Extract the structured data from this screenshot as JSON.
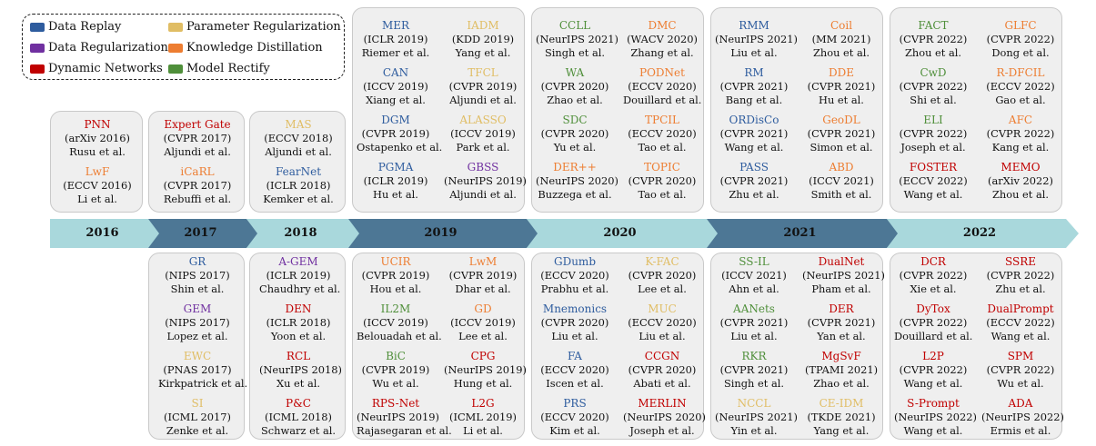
{
  "colors": {
    "DR": "#2E5C9E",
    "REG": "#7030A0",
    "DN": "#C00000",
    "PR": "#E0BD64",
    "KD": "#ED7D31",
    "MR": "#4F8F3A",
    "arrow_light": "#A9D8DC",
    "arrow_dark": "#4D7795"
  },
  "legend": [
    {
      "label": "Data Replay",
      "cat": "DR"
    },
    {
      "label": "Parameter Regularization",
      "cat": "PR"
    },
    {
      "label": "Data Regularization",
      "cat": "REG"
    },
    {
      "label": "Knowledge Distillation",
      "cat": "KD"
    },
    {
      "label": "Dynamic Networks",
      "cat": "DN"
    },
    {
      "label": "Model Rectify",
      "cat": "MR"
    }
  ],
  "years": [
    "2016",
    "2017",
    "2018",
    "2019",
    "2020",
    "2021",
    "2022"
  ],
  "top": {
    "2016": [
      {
        "name": "PNN",
        "venue": "(arXiv 2016)",
        "authors": "Rusu et al.",
        "cat": "DN"
      },
      {
        "name": "LwF",
        "venue": "(ECCV 2016)",
        "authors": "Li et al.",
        "cat": "KD"
      }
    ],
    "2017": [
      {
        "name": "Expert Gate",
        "venue": "(CVPR 2017)",
        "authors": "Aljundi et al.",
        "cat": "DN"
      },
      {
        "name": "iCaRL",
        "venue": "(CVPR 2017)",
        "authors": "Rebuffi et al.",
        "cat": "KD"
      }
    ],
    "2018": [
      {
        "name": "MAS",
        "venue": "(ECCV 2018)",
        "authors": "Aljundi et al.",
        "cat": "PR"
      },
      {
        "name": "FearNet",
        "venue": "(ICLR 2018)",
        "authors": "Kemker et al.",
        "cat": "DR"
      }
    ],
    "2019": [
      {
        "name": "MER",
        "venue": "(ICLR 2019)",
        "authors": "Riemer et al.",
        "cat": "DR"
      },
      {
        "name": "IADM",
        "venue": "(KDD 2019)",
        "authors": "Yang et al.",
        "cat": "PR"
      },
      {
        "name": "CAN",
        "venue": "(ICCV 2019)",
        "authors": "Xiang et al.",
        "cat": "DR"
      },
      {
        "name": "TFCL",
        "venue": "(CVPR 2019)",
        "authors": "Aljundi et al.",
        "cat": "PR"
      },
      {
        "name": "DGM",
        "venue": "(CVPR 2019)",
        "authors": "Ostapenko et al.",
        "cat": "DR"
      },
      {
        "name": "ALASSO",
        "venue": "(ICCV 2019)",
        "authors": "Park et al.",
        "cat": "PR"
      },
      {
        "name": "PGMA",
        "venue": "(ICLR 2019)",
        "authors": "Hu et al.",
        "cat": "DR"
      },
      {
        "name": "GBSS",
        "venue": "(NeurIPS 2019)",
        "authors": "Aljundi et al.",
        "cat": "REG"
      }
    ],
    "2020": [
      {
        "name": "CCLL",
        "venue": "(NeurIPS 2021)",
        "authors": "Singh et al.",
        "cat": "MR"
      },
      {
        "name": "DMC",
        "venue": "(WACV 2020)",
        "authors": "Zhang et al.",
        "cat": "KD"
      },
      {
        "name": "WA",
        "venue": "(CVPR 2020)",
        "authors": "Zhao et al.",
        "cat": "MR"
      },
      {
        "name": "PODNet",
        "venue": "(ECCV 2020)",
        "authors": "Douillard et al.",
        "cat": "KD"
      },
      {
        "name": "SDC",
        "venue": "(CVPR 2020)",
        "authors": "Yu et al.",
        "cat": "MR"
      },
      {
        "name": "TPCIL",
        "venue": "(ECCV 2020)",
        "authors": "Tao et al.",
        "cat": "KD"
      },
      {
        "name": "DER++",
        "venue": "(NeurIPS 2020)",
        "authors": "Buzzega et al.",
        "cat": "KD"
      },
      {
        "name": "TOPIC",
        "venue": "(CVPR 2020)",
        "authors": "Tao et al.",
        "cat": "KD"
      }
    ],
    "2021": [
      {
        "name": "RMM",
        "venue": "(NeurIPS 2021)",
        "authors": "Liu et al.",
        "cat": "DR"
      },
      {
        "name": "Coil",
        "venue": "(MM 2021)",
        "authors": "Zhou et al.",
        "cat": "KD"
      },
      {
        "name": "RM",
        "venue": "(CVPR 2021)",
        "authors": "Bang et al.",
        "cat": "DR"
      },
      {
        "name": "DDE",
        "venue": "(CVPR 2021)",
        "authors": "Hu et al.",
        "cat": "KD"
      },
      {
        "name": "ORDisCo",
        "venue": "(CVPR 2021)",
        "authors": "Wang et al.",
        "cat": "DR"
      },
      {
        "name": "GeoDL",
        "venue": "(CVPR 2021)",
        "authors": "Simon et al.",
        "cat": "KD"
      },
      {
        "name": "PASS",
        "venue": "(CVPR 2021)",
        "authors": "Zhu et al.",
        "cat": "DR"
      },
      {
        "name": "ABD",
        "venue": "(ICCV 2021)",
        "authors": "Smith et al.",
        "cat": "KD"
      }
    ],
    "2022": [
      {
        "name": "FACT",
        "venue": "(CVPR 2022)",
        "authors": "Zhou et al.",
        "cat": "MR"
      },
      {
        "name": "GLFC",
        "venue": "(CVPR 2022)",
        "authors": "Dong et al.",
        "cat": "KD"
      },
      {
        "name": "CwD",
        "venue": "(CVPR 2022)",
        "authors": "Shi et al.",
        "cat": "MR"
      },
      {
        "name": "R-DFCIL",
        "venue": "(ECCV 2022)",
        "authors": "Gao et al.",
        "cat": "KD"
      },
      {
        "name": "ELI",
        "venue": "(CVPR 2022)",
        "authors": "Joseph et al.",
        "cat": "MR"
      },
      {
        "name": "AFC",
        "venue": "(CVPR 2022)",
        "authors": "Kang et al.",
        "cat": "KD"
      },
      {
        "name": "FOSTER",
        "venue": "(ECCV 2022)",
        "authors": "Wang et al.",
        "cat": "DN"
      },
      {
        "name": "MEMO",
        "venue": "(arXiv 2022)",
        "authors": "Zhou et al.",
        "cat": "DN"
      }
    ]
  },
  "bottom": {
    "2016": [],
    "2017": [
      {
        "name": "GR",
        "venue": "(NIPS 2017)",
        "authors": "Shin et al.",
        "cat": "DR"
      },
      {
        "name": "GEM",
        "venue": "(NIPS 2017)",
        "authors": "Lopez et al.",
        "cat": "REG"
      },
      {
        "name": "EWC",
        "venue": "(PNAS 2017)",
        "authors": "Kirkpatrick et al.",
        "cat": "PR"
      },
      {
        "name": "SI",
        "venue": "(ICML 2017)",
        "authors": "Zenke et al.",
        "cat": "PR"
      }
    ],
    "2018": [
      {
        "name": "A-GEM",
        "venue": "(ICLR 2019)",
        "authors": "Chaudhry et al.",
        "cat": "REG"
      },
      {
        "name": "DEN",
        "venue": "(ICLR 2018)",
        "authors": "Yoon et al.",
        "cat": "DN"
      },
      {
        "name": "RCL",
        "venue": "(NeurIPS 2018)",
        "authors": "Xu et al.",
        "cat": "DN"
      },
      {
        "name": "P&C",
        "venue": "(ICML 2018)",
        "authors": "Schwarz et al.",
        "cat": "DN"
      }
    ],
    "2019": [
      {
        "name": "UCIR",
        "venue": "(CVPR 2019)",
        "authors": "Hou et al.",
        "cat": "KD"
      },
      {
        "name": "LwM",
        "venue": "(CVPR 2019)",
        "authors": "Dhar et al.",
        "cat": "KD"
      },
      {
        "name": "IL2M",
        "venue": "(ICCV 2019)",
        "authors": "Belouadah et al.",
        "cat": "MR"
      },
      {
        "name": "GD",
        "venue": "(ICCV 2019)",
        "authors": "Lee et al.",
        "cat": "KD"
      },
      {
        "name": "BiC",
        "venue": "(CVPR 2019)",
        "authors": "Wu et al.",
        "cat": "MR"
      },
      {
        "name": "CPG",
        "venue": "(NeurIPS 2019)",
        "authors": "Hung et al.",
        "cat": "DN"
      },
      {
        "name": "RPS-Net",
        "venue": "(NeurIPS 2019)",
        "authors": "Rajasegaran et al.",
        "cat": "DN"
      },
      {
        "name": "L2G",
        "venue": "(ICML 2019)",
        "authors": "Li et al.",
        "cat": "DN"
      }
    ],
    "2020": [
      {
        "name": "GDumb",
        "venue": "(ECCV 2020)",
        "authors": "Prabhu et al.",
        "cat": "DR"
      },
      {
        "name": "K-FAC",
        "venue": "(CVPR 2020)",
        "authors": "Lee et al.",
        "cat": "PR"
      },
      {
        "name": "Mnemonics",
        "venue": "(CVPR 2020)",
        "authors": "Liu et al.",
        "cat": "DR"
      },
      {
        "name": "MUC",
        "venue": "(ECCV 2020)",
        "authors": "Liu et al.",
        "cat": "PR"
      },
      {
        "name": "FA",
        "venue": "(ECCV 2020)",
        "authors": "Iscen et al.",
        "cat": "DR"
      },
      {
        "name": "CCGN",
        "venue": "(CVPR 2020)",
        "authors": "Abati et al.",
        "cat": "DN"
      },
      {
        "name": "PRS",
        "venue": "(ECCV 2020)",
        "authors": "Kim et al.",
        "cat": "DR"
      },
      {
        "name": "MERLIN",
        "venue": "(NeurIPS 2020)",
        "authors": "Joseph et al.",
        "cat": "DN"
      }
    ],
    "2021": [
      {
        "name": "SS-IL",
        "venue": "(ICCV 2021)",
        "authors": "Ahn et al.",
        "cat": "MR"
      },
      {
        "name": "DualNet",
        "venue": "(NeurIPS 2021)",
        "authors": "Pham et al.",
        "cat": "DN"
      },
      {
        "name": "AANets",
        "venue": "(CVPR 2021)",
        "authors": "Liu et al.",
        "cat": "MR"
      },
      {
        "name": "DER",
        "venue": "(CVPR 2021)",
        "authors": "Yan et al.",
        "cat": "DN"
      },
      {
        "name": "RKR",
        "venue": "(CVPR 2021)",
        "authors": "Singh et al.",
        "cat": "MR"
      },
      {
        "name": "MgSvF",
        "venue": "(TPAMI 2021)",
        "authors": "Zhao et al.",
        "cat": "DN"
      },
      {
        "name": "NCCL",
        "venue": "(NeurIPS 2021)",
        "authors": "Yin et al.",
        "cat": "PR"
      },
      {
        "name": "CE-IDM",
        "venue": "(TKDE 2021)",
        "authors": "Yang et al.",
        "cat": "PR"
      }
    ],
    "2022": [
      {
        "name": "DCR",
        "venue": "(CVPR 2022)",
        "authors": "Xie et al.",
        "cat": "DN"
      },
      {
        "name": "SSRE",
        "venue": "(CVPR 2022)",
        "authors": "Zhu et al.",
        "cat": "DN"
      },
      {
        "name": "DyTox",
        "venue": "(CVPR 2022)",
        "authors": "Douillard et al.",
        "cat": "DN"
      },
      {
        "name": "DualPrompt",
        "venue": "(ECCV 2022)",
        "authors": "Wang et al.",
        "cat": "DN"
      },
      {
        "name": "L2P",
        "venue": "(CVPR 2022)",
        "authors": "Wang et al.",
        "cat": "DN"
      },
      {
        "name": "SPM",
        "venue": "(CVPR 2022)",
        "authors": "Wu et al.",
        "cat": "DN"
      },
      {
        "name": "S-Prompt",
        "venue": "(NeurIPS 2022)",
        "authors": "Wang et al.",
        "cat": "DN"
      },
      {
        "name": "ADA",
        "venue": "(NeurIPS 2022)",
        "authors": "Ermis et al.",
        "cat": "DN"
      }
    ]
  }
}
